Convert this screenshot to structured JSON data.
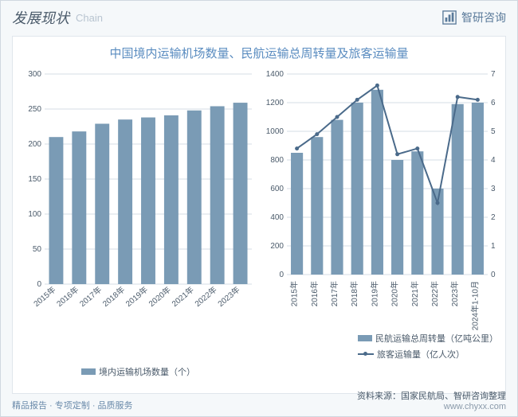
{
  "header": {
    "title": "发展现状",
    "subtitle": "Chain",
    "brand": "智研咨询"
  },
  "card": {
    "title": "中国境内运输机场数量、民航运输总周转量及旅客运输量"
  },
  "left_chart": {
    "type": "bar",
    "categories": [
      "2015年",
      "2016年",
      "2017年",
      "2018年",
      "2019年",
      "2020年",
      "2021年",
      "2022年",
      "2023年"
    ],
    "values": [
      210,
      218,
      229,
      235,
      238,
      241,
      248,
      254,
      259
    ],
    "ylim": [
      0,
      300
    ],
    "ytick_step": 50,
    "bar_color": "#7a9bb5",
    "grid_color": "#d4dce4",
    "legend": "境内运输机场数量（个）"
  },
  "right_chart": {
    "type": "bar-line",
    "categories": [
      "2015年",
      "2016年",
      "2017年",
      "2018年",
      "2019年",
      "2020年",
      "2021年",
      "2022年",
      "2023年",
      "2024年1-10月"
    ],
    "bar_values": [
      850,
      960,
      1080,
      1200,
      1290,
      800,
      860,
      600,
      1190,
      1200
    ],
    "line_values": [
      4.4,
      4.9,
      5.5,
      6.1,
      6.6,
      4.2,
      4.4,
      2.5,
      6.2,
      6.1
    ],
    "y1lim": [
      0,
      1400
    ],
    "y1tick_step": 200,
    "y2lim": [
      0,
      7
    ],
    "y2tick_step": 1,
    "bar_color": "#7a9bb5",
    "line_color": "#4a6a8a",
    "grid_color": "#d4dce4",
    "legend_bar": "民航运输总周转量（亿吨公里）",
    "legend_line": "旅客运输量（亿人次）"
  },
  "footer": {
    "left": "精品报告 · 专项定制 · 品质服务",
    "source": "资料来源：国家民航局、智研咨询整理",
    "url": "www.chyxx.com"
  },
  "styling": {
    "card_bg": "#ffffff",
    "page_bg": "#f5f8fa",
    "title_color": "#5a8cc0",
    "label_fontsize": 10
  }
}
